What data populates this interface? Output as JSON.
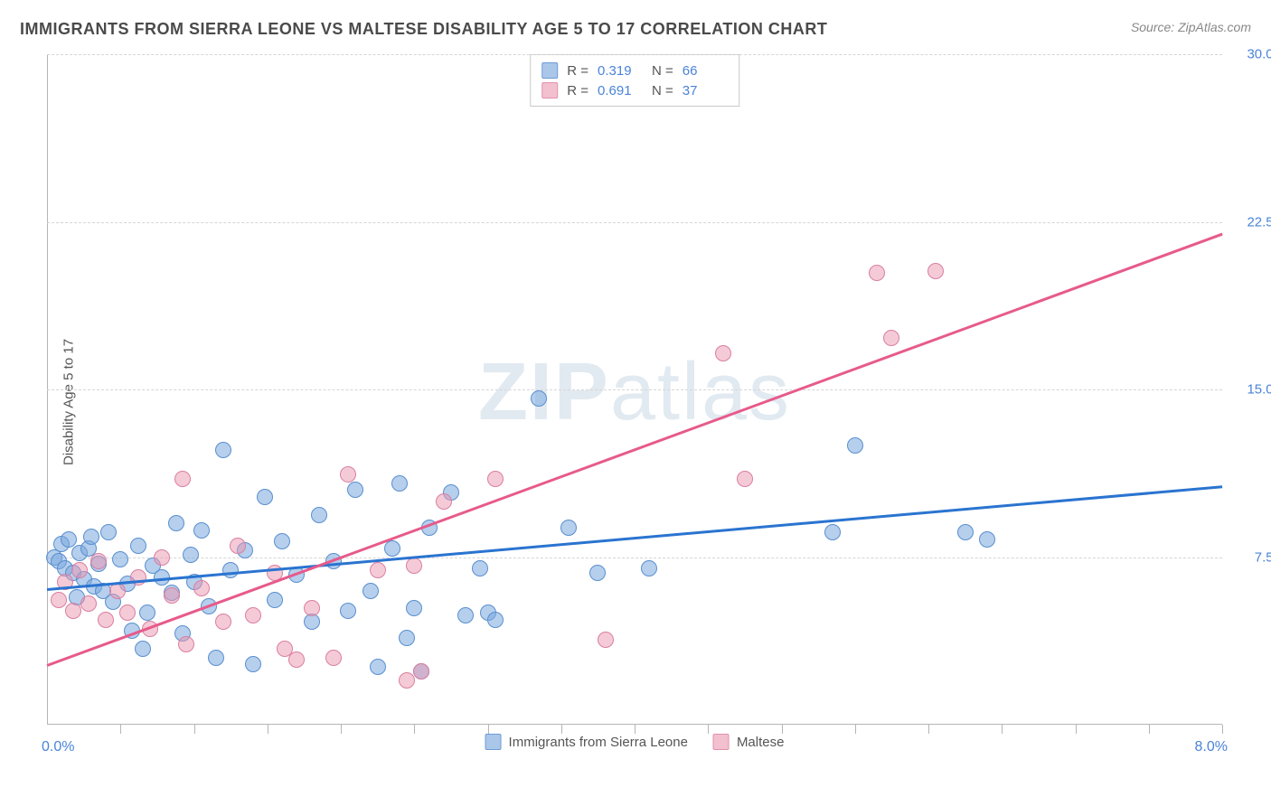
{
  "header": {
    "title": "IMMIGRANTS FROM SIERRA LEONE VS MALTESE DISABILITY AGE 5 TO 17 CORRELATION CHART",
    "source_prefix": "Source: ",
    "source": "ZipAtlas.com"
  },
  "watermark": {
    "zip": "ZIP",
    "rest": "atlas"
  },
  "chart": {
    "type": "scatter-with-trend",
    "y_axis_label": "Disability Age 5 to 17",
    "xlim": [
      0.0,
      8.0
    ],
    "ylim": [
      0.0,
      30.0
    ],
    "x_min_label": "0.0%",
    "x_max_label": "8.0%",
    "y_ticks": [
      7.5,
      15.0,
      22.5,
      30.0
    ],
    "y_tick_labels": [
      "7.5%",
      "15.0%",
      "22.5%",
      "30.0%"
    ],
    "x_ticks": [
      0.5,
      1.0,
      1.5,
      2.0,
      2.5,
      3.0,
      3.5,
      4.0,
      4.5,
      5.0,
      5.5,
      6.0,
      6.5,
      7.0,
      7.5,
      8.0
    ],
    "grid_color": "#d6d6d6",
    "axis_color": "#b5b5b5",
    "background_color": "#ffffff",
    "tick_label_color": "#4a84d8",
    "point_radius": 9,
    "point_border_width": 1.5,
    "trend_width": 2.5
  },
  "series": [
    {
      "name": "Immigrants from Sierra Leone",
      "legend_id": "sierra-leone",
      "fill": "rgba(121,167,223,0.55)",
      "stroke": "#5a8fce",
      "swatch_fill": "#aac7ea",
      "swatch_border": "#6d9bd4",
      "trend_color": "#2a74d0",
      "r_value": "0.319",
      "n_value": "66",
      "trend_y_at_xmin": 6.1,
      "trend_y_at_xmax": 10.7,
      "points": [
        [
          0.05,
          7.5
        ],
        [
          0.08,
          7.3
        ],
        [
          0.1,
          8.1
        ],
        [
          0.12,
          7.0
        ],
        [
          0.15,
          8.3
        ],
        [
          0.18,
          6.8
        ],
        [
          0.2,
          5.7
        ],
        [
          0.22,
          7.7
        ],
        [
          0.25,
          6.5
        ],
        [
          0.28,
          7.9
        ],
        [
          0.3,
          8.4
        ],
        [
          0.32,
          6.2
        ],
        [
          0.35,
          7.2
        ],
        [
          0.38,
          6.0
        ],
        [
          0.42,
          8.6
        ],
        [
          0.45,
          5.5
        ],
        [
          0.5,
          7.4
        ],
        [
          0.55,
          6.3
        ],
        [
          0.58,
          4.2
        ],
        [
          0.62,
          8.0
        ],
        [
          0.68,
          5.0
        ],
        [
          0.72,
          7.1
        ],
        [
          0.78,
          6.6
        ],
        [
          0.85,
          5.9
        ],
        [
          0.88,
          9.0
        ],
        [
          0.92,
          4.1
        ],
        [
          0.98,
          7.6
        ],
        [
          1.0,
          6.4
        ],
        [
          1.05,
          8.7
        ],
        [
          1.1,
          5.3
        ],
        [
          1.15,
          3.0
        ],
        [
          1.2,
          12.3
        ],
        [
          1.25,
          6.9
        ],
        [
          1.35,
          7.8
        ],
        [
          1.4,
          2.7
        ],
        [
          1.48,
          10.2
        ],
        [
          1.55,
          5.6
        ],
        [
          1.6,
          8.2
        ],
        [
          1.7,
          6.7
        ],
        [
          1.8,
          4.6
        ],
        [
          1.85,
          9.4
        ],
        [
          1.95,
          7.3
        ],
        [
          2.05,
          5.1
        ],
        [
          2.1,
          10.5
        ],
        [
          2.2,
          6.0
        ],
        [
          2.25,
          2.6
        ],
        [
          2.35,
          7.9
        ],
        [
          2.4,
          10.8
        ],
        [
          2.45,
          3.9
        ],
        [
          2.5,
          5.2
        ],
        [
          2.55,
          2.4
        ],
        [
          2.6,
          8.8
        ],
        [
          2.75,
          10.4
        ],
        [
          2.85,
          4.9
        ],
        [
          2.95,
          7.0
        ],
        [
          3.0,
          5.0
        ],
        [
          3.05,
          4.7
        ],
        [
          3.35,
          14.6
        ],
        [
          3.55,
          8.8
        ],
        [
          3.75,
          6.8
        ],
        [
          4.1,
          7.0
        ],
        [
          5.35,
          8.6
        ],
        [
          5.5,
          12.5
        ],
        [
          6.25,
          8.6
        ],
        [
          6.4,
          8.3
        ],
        [
          0.65,
          3.4
        ]
      ]
    },
    {
      "name": "Maltese",
      "legend_id": "maltese",
      "fill": "rgba(236,150,176,0.50)",
      "stroke": "#d97fa0",
      "swatch_fill": "#f2c0cf",
      "swatch_border": "#e290ab",
      "trend_color": "#e75a8b",
      "r_value": "0.691",
      "n_value": "37",
      "trend_y_at_xmin": 2.7,
      "trend_y_at_xmax": 22.0,
      "points": [
        [
          0.08,
          5.6
        ],
        [
          0.12,
          6.4
        ],
        [
          0.18,
          5.1
        ],
        [
          0.22,
          6.9
        ],
        [
          0.28,
          5.4
        ],
        [
          0.35,
          7.3
        ],
        [
          0.4,
          4.7
        ],
        [
          0.48,
          6.0
        ],
        [
          0.55,
          5.0
        ],
        [
          0.62,
          6.6
        ],
        [
          0.7,
          4.3
        ],
        [
          0.78,
          7.5
        ],
        [
          0.85,
          5.8
        ],
        [
          0.92,
          11.0
        ],
        [
          1.05,
          6.1
        ],
        [
          1.2,
          4.6
        ],
        [
          1.3,
          8.0
        ],
        [
          1.4,
          4.9
        ],
        [
          1.55,
          6.8
        ],
        [
          1.62,
          3.4
        ],
        [
          1.7,
          2.9
        ],
        [
          1.8,
          5.2
        ],
        [
          1.95,
          3.0
        ],
        [
          2.05,
          11.2
        ],
        [
          2.25,
          6.9
        ],
        [
          2.45,
          2.0
        ],
        [
          2.5,
          7.1
        ],
        [
          2.55,
          2.4
        ],
        [
          2.7,
          10.0
        ],
        [
          3.05,
          11.0
        ],
        [
          3.8,
          3.8
        ],
        [
          4.6,
          16.6
        ],
        [
          4.75,
          11.0
        ],
        [
          5.65,
          20.2
        ],
        [
          5.75,
          17.3
        ],
        [
          6.05,
          20.3
        ],
        [
          0.95,
          3.6
        ]
      ]
    }
  ],
  "legend_top": {
    "r_label": "R =",
    "n_label": "N ="
  }
}
